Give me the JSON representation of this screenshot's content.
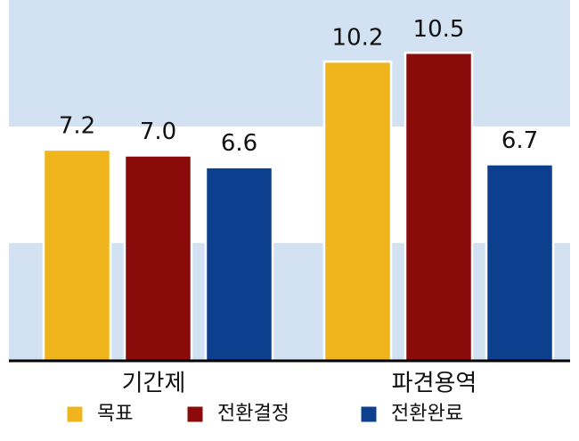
{
  "chart_data": {
    "type": "bar",
    "categories": [
      "기간제",
      "파견용역"
    ],
    "series": [
      {
        "name": "목표",
        "color": "#f0b41c",
        "values": [
          7.2,
          10.2
        ],
        "value_labels": [
          "7.2",
          "10.2"
        ]
      },
      {
        "name": "전환결정",
        "color": "#8b0a0a",
        "values": [
          7.0,
          10.5
        ],
        "value_labels": [
          "7.0",
          "10.5"
        ]
      },
      {
        "name": "전환완료",
        "color": "#0d3f8f",
        "values": [
          6.6,
          6.7
        ],
        "value_labels": [
          "6.6",
          "6.7"
        ]
      }
    ],
    "ylim": [
      0,
      12.3
    ],
    "yticks": [
      0,
      4,
      8,
      12
    ],
    "grid": true,
    "legend": "bottom"
  }
}
